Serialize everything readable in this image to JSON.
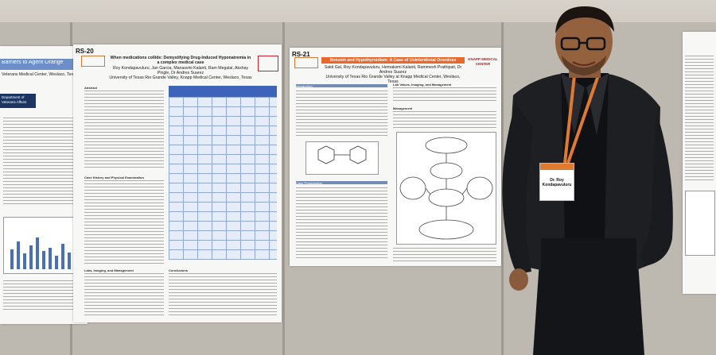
{
  "left_poster": {
    "title": "Barriers to Agent Orange",
    "subtitle": "Veterans Medical Center, Weslaco, Texas",
    "logo_text": "Department of Veterans Affairs"
  },
  "poster_rs20": {
    "label": "RS-20",
    "title": "When medications collide: Demystifying Drug-Induced Hyponatremia in a complex medical case",
    "authors": "Roy Kondapavuluru, Jan Garcia, Manasvini Kalanti, Ram Megalai, Akshay Pingle, Dr Andres Suarez",
    "institution": "University of Texas Rio Grande Valley, Knapp Medical Center, Weslaco, Texas",
    "sections": [
      "Abstract",
      "Case History and Physical Examination",
      "Labs, Imaging, and Management",
      "Conclusions"
    ]
  },
  "poster_rs21": {
    "label": "RS-21",
    "title": "Benzoin and Hypothyroidism: A Case of Unintentional Overdose",
    "authors": "Sakti Gal, Roy Kondapavuluru, Hemaksmi Kalanti, Rammesh Prathipati, Dr Andres Suarez",
    "institution": "University of Texas Rio Grande Valley at Knapp Medical Center, Weslaco, Texas",
    "sections": [
      "Introduction",
      "Case Presentation",
      "Lab Values, Imaging, and Management",
      "Management"
    ],
    "logo_text": "KNAPP MEDICAL CENTER"
  },
  "badge": {
    "name": "Dr. Roy Kondapavuluru"
  },
  "colors": {
    "accent": "#e8692b",
    "suit": "#1c1d20",
    "board": "#bdb8b0"
  }
}
